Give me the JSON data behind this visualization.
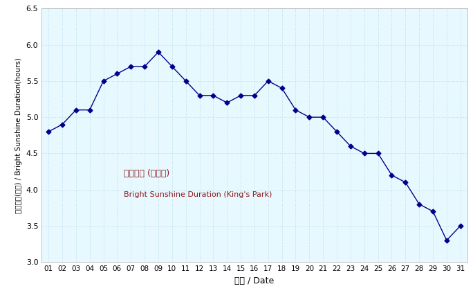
{
  "days": [
    1,
    2,
    3,
    4,
    5,
    6,
    7,
    8,
    9,
    10,
    11,
    12,
    13,
    14,
    15,
    16,
    17,
    18,
    19,
    20,
    21,
    22,
    23,
    24,
    25,
    26,
    27,
    28,
    29,
    30,
    31
  ],
  "values": [
    4.8,
    4.9,
    5.1,
    5.1,
    5.5,
    5.6,
    5.7,
    5.7,
    5.9,
    5.7,
    5.5,
    5.3,
    5.3,
    5.2,
    5.3,
    5.3,
    5.5,
    5.4,
    5.1,
    5.0,
    5.0,
    4.8,
    4.6,
    4.5,
    4.5,
    4.2,
    4.1,
    3.8,
    3.7,
    3.3,
    3.5
  ],
  "xlabel": "日期 / Date",
  "ylabel": "平均日照(小時) / Bright Sunshine Duration(hours)",
  "ylim": [
    3.0,
    6.5
  ],
  "yticks": [
    3.0,
    3.5,
    4.0,
    4.5,
    5.0,
    5.5,
    6.0,
    6.5
  ],
  "line_color": "#00008B",
  "marker": "D",
  "marker_size": 3.5,
  "bg_color": "#E8F8FF",
  "label_chinese": "平均日照 (京士柏)",
  "label_english": "Bright Sunshine Duration (King's Park)",
  "label_color": "#8B1A1A",
  "tick_labels": [
    "01",
    "02",
    "03",
    "04",
    "05",
    "06",
    "07",
    "08",
    "09",
    "10",
    "11",
    "12",
    "13",
    "14",
    "15",
    "16",
    "17",
    "18",
    "19",
    "20",
    "21",
    "22",
    "23",
    "24",
    "25",
    "26",
    "27",
    "28",
    "29",
    "30",
    "31"
  ],
  "grid_color": "#B0D8E8",
  "spine_color": "#AAAAAA",
  "fig_bg": "#FFFFFF"
}
